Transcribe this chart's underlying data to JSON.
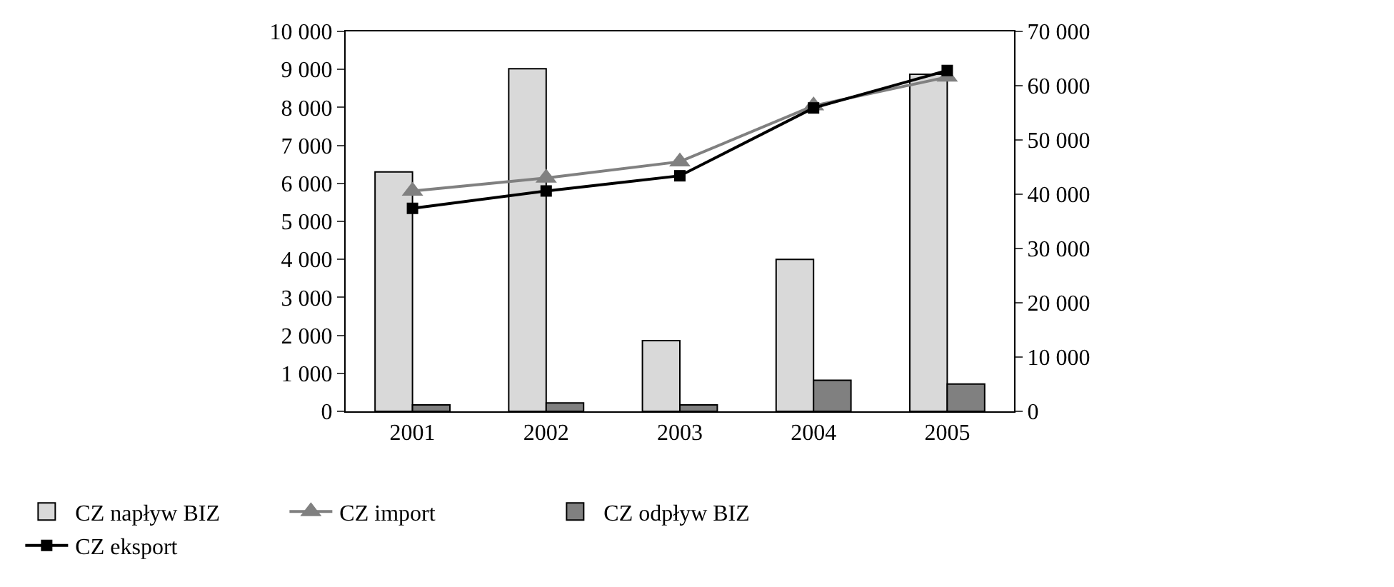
{
  "chart_data": {
    "type": "bar",
    "categories": [
      "2001",
      "2002",
      "2003",
      "2004",
      "2005"
    ],
    "series": [
      {
        "name": "CZ napływ BIZ",
        "color": "#d9d9d9",
        "values": [
          6300,
          9020,
          1860,
          4000,
          8870
        ]
      },
      {
        "name": "CZ import",
        "type": "line",
        "axis": "y2",
        "color": "#808080",
        "marker": "triangle",
        "values": [
          40600,
          43000,
          46000,
          56300,
          61600
        ]
      },
      {
        "name": "CZ odpływ BIZ",
        "color": "#808080",
        "values": [
          170,
          220,
          170,
          820,
          720
        ]
      },
      {
        "name": "CZ eksport",
        "type": "line",
        "axis": "y2",
        "color": "#000000",
        "marker": "square",
        "values": [
          37400,
          40600,
          43400,
          55900,
          62800
        ]
      }
    ],
    "ylim": [
      0,
      10000
    ],
    "yticks": [
      0,
      {
        "value": 1000,
        "label": "1 000"
      },
      {
        "value": 2000,
        "label": "2 000"
      },
      {
        "value": 3000,
        "label": "3 000"
      },
      {
        "value": 4000,
        "label": "4 000"
      },
      {
        "value": 5000,
        "label": "5 000"
      },
      {
        "value": 6000,
        "label": "6 000"
      },
      {
        "value": 7000,
        "label": "7 000"
      },
      {
        "value": 8000,
        "label": "8 000"
      },
      {
        "value": 9000,
        "label": "9 000"
      },
      {
        "value": 10000,
        "label": "10 000"
      }
    ],
    "y2lim": [
      0,
      70000
    ],
    "y2ticks": [
      0,
      {
        "value": 10000,
        "label": "10 000"
      },
      {
        "value": 20000,
        "label": "20 000"
      },
      {
        "value": 30000,
        "label": "30 000"
      },
      {
        "value": 40000,
        "label": "40 000"
      },
      {
        "value": 50000,
        "label": "50 000"
      },
      {
        "value": 60000,
        "label": "60 000"
      },
      {
        "value": 70000,
        "label": "70 000"
      }
    ],
    "legend": "bottom",
    "line_style": "solid"
  }
}
